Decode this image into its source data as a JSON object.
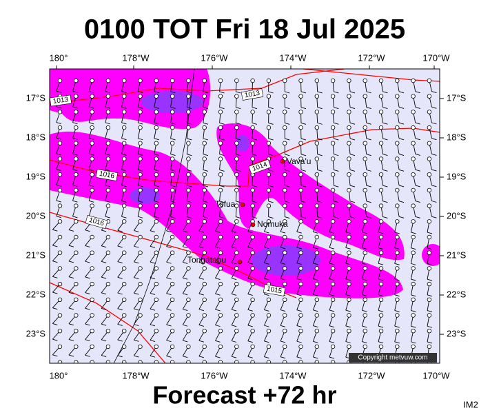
{
  "title": "0100 TOT Fri 18 Jul 2025",
  "footer": "Forecast +72 hr",
  "corner_label": "IM2",
  "copyright": "Copyright metvuw.com",
  "lon_labels": [
    "180°",
    "178°W",
    "176°W",
    "174°W",
    "172°W",
    "170°W"
  ],
  "lat_labels": [
    "17°S",
    "18°S",
    "19°S",
    "20°S",
    "21°S",
    "22°S",
    "23°S"
  ],
  "places": [
    "Vava'u",
    "Tofua",
    "Nomuka",
    "Tongatapu"
  ],
  "isobar_labels": [
    "1013",
    "1013",
    "1014",
    "1016",
    "1016",
    "1015"
  ]
}
